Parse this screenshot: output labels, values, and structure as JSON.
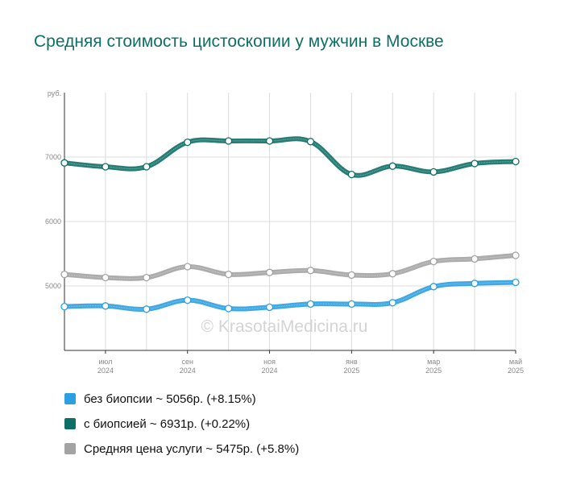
{
  "chart_data": {
    "type": "line",
    "title": "Средняя стоимость цистоскопии у мужчин в Москве",
    "ylabel": "руб.",
    "ylim": [
      4000,
      8000
    ],
    "yticks": [
      5000,
      6000,
      7000
    ],
    "watermark": "© KrasotaiMedicina.ru",
    "x": [
      "2024-06",
      "2024-07",
      "2024-08",
      "2024-09",
      "2024-10",
      "2024-11",
      "2024-12",
      "2025-01",
      "2025-02",
      "2025-03",
      "2025-04",
      "2025-05"
    ],
    "x_tick_labels": [
      {
        "month": "июл",
        "year": "2024",
        "index": 1
      },
      {
        "month": "сен",
        "year": "2024",
        "index": 3
      },
      {
        "month": "ноя",
        "year": "2024",
        "index": 5
      },
      {
        "month": "янв",
        "year": "2025",
        "index": 7
      },
      {
        "month": "мар",
        "year": "2025",
        "index": 9
      },
      {
        "month": "май",
        "year": "2025",
        "index": 11
      }
    ],
    "grid": true,
    "legend_position": "bottom",
    "series": [
      {
        "name": "без биопсии",
        "legend": "без биопсии ~ 5056р. (+8.15%)",
        "color": "#2b9fe0",
        "values": [
          4680,
          4690,
          4640,
          4780,
          4650,
          4670,
          4720,
          4720,
          4740,
          4990,
          5040,
          5056
        ]
      },
      {
        "name": "с биопсией",
        "legend": "с биопсией ~ 6931р. (+0.22%)",
        "color": "#0e6f66",
        "values": [
          6910,
          6850,
          6850,
          7230,
          7250,
          7250,
          7240,
          6730,
          6860,
          6770,
          6900,
          6931
        ]
      },
      {
        "name": "Средняя цена услуги",
        "legend": "Средняя цена услуги ~ 5475р. (+5.8%)",
        "color": "#a3a3a3",
        "values": [
          5180,
          5130,
          5130,
          5300,
          5180,
          5210,
          5240,
          5170,
          5190,
          5380,
          5420,
          5475
        ]
      }
    ]
  }
}
